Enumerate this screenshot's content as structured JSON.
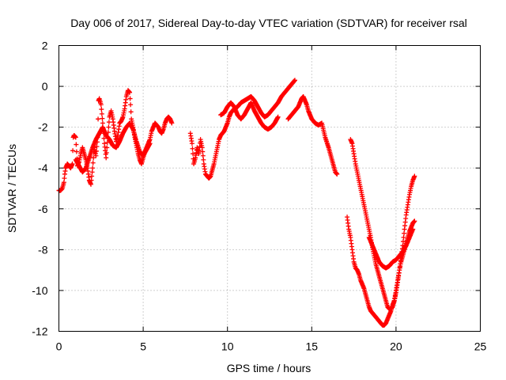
{
  "chart_data": {
    "type": "scatter",
    "title": "Day 006 of 2017, Sidereal Day-to-day VTEC variation (SDTVAR) for receiver rsal",
    "xlabel": "GPS time / hours",
    "ylabel": "SDTVAR / TECUs",
    "xlim": [
      0,
      25
    ],
    "ylim": [
      -12,
      2
    ],
    "xticks": [
      0,
      5,
      10,
      15,
      20,
      25
    ],
    "yticks": [
      -12,
      -10,
      -8,
      -6,
      -4,
      -2,
      0,
      2
    ],
    "xtick_labels": [
      "0",
      "5",
      "10",
      "15",
      "20",
      "25"
    ],
    "ytick_labels": [
      "-12",
      "-10",
      "-8",
      "-6",
      "-4",
      "-2",
      "0",
      "2"
    ],
    "grid": true,
    "legend": "none",
    "marker": "plus",
    "color": "#ff0000",
    "series": [
      {
        "x": [
          0.0,
          0.1,
          0.2,
          0.3,
          0.35,
          0.4,
          0.5,
          0.6,
          0.7,
          0.8,
          0.85,
          0.9,
          1.0,
          1.05,
          1.1,
          1.2,
          1.3,
          1.4,
          1.5,
          1.6,
          1.7,
          1.8,
          1.9,
          2.0,
          2.1,
          2.2,
          2.3,
          2.35,
          2.4,
          2.5,
          2.6,
          2.7,
          2.8,
          2.9,
          3.0,
          3.1,
          3.2,
          3.3,
          3.4,
          3.5,
          3.6,
          3.7,
          3.8,
          3.9,
          4.0,
          4.1,
          4.2,
          4.25,
          4.3,
          4.4,
          4.5,
          4.6,
          4.7,
          4.8,
          4.9,
          5.0,
          5.1,
          5.2,
          5.3,
          5.4,
          5.5,
          5.6,
          5.7,
          5.8,
          5.9,
          6.0,
          6.1,
          6.2,
          6.3,
          6.4,
          6.5,
          6.6,
          6.7
        ],
        "y": [
          -5.1,
          -5.1,
          -5.0,
          -4.7,
          -4.3,
          -4.0,
          -3.8,
          -3.9,
          -4.0,
          -3.8,
          -2.5,
          -2.4,
          -2.5,
          -3.2,
          -3.9,
          -3.7,
          -3.3,
          -3.0,
          -3.3,
          -3.6,
          -4.0,
          -4.6,
          -4.8,
          -4.0,
          -3.0,
          -3.4,
          -2.5,
          -0.7,
          -0.6,
          -0.9,
          -1.8,
          -2.8,
          -3.5,
          -2.5,
          -1.5,
          -1.2,
          -1.6,
          -2.2,
          -2.7,
          -2.4,
          -1.8,
          -1.7,
          -1.5,
          -1.1,
          -0.5,
          -0.2,
          -0.3,
          -0.9,
          -1.6,
          -2.0,
          -2.5,
          -2.9,
          -3.3,
          -3.6,
          -3.8,
          -3.5,
          -3.2,
          -3.0,
          -2.8,
          -2.6,
          -2.2,
          -2.0,
          -1.8,
          -1.9,
          -2.0,
          -2.2,
          -2.3,
          -2.1,
          -1.8,
          -1.6,
          -1.5,
          -1.6,
          -1.8
        ]
      },
      {
        "x": [
          1.0,
          1.2,
          1.4,
          1.6,
          1.8,
          2.0,
          2.2,
          2.4,
          2.6,
          2.8,
          3.0,
          3.2,
          3.4,
          3.6,
          3.8,
          4.0,
          4.2,
          4.4,
          4.6,
          4.8,
          5.0,
          5.2,
          5.4
        ],
        "y": [
          -3.6,
          -3.9,
          -4.2,
          -4.0,
          -3.5,
          -3.0,
          -2.6,
          -2.3,
          -2.0,
          -2.4,
          -2.6,
          -2.9,
          -3.0,
          -2.7,
          -2.3,
          -2.0,
          -1.8,
          -2.1,
          -2.7,
          -3.2,
          -3.4,
          -3.1,
          -2.8
        ]
      },
      {
        "x": [
          7.8,
          7.9,
          8.0,
          8.1,
          8.2,
          8.3,
          8.4,
          8.5,
          8.6,
          8.7,
          8.8,
          8.9,
          9.0,
          9.1,
          9.2,
          9.3,
          9.4,
          9.5,
          9.6,
          9.7,
          9.8,
          9.9,
          10.0,
          10.1,
          10.2,
          10.4,
          10.6,
          10.8,
          11.0,
          11.2,
          11.4,
          11.6,
          11.8,
          12.0,
          12.2,
          12.4,
          12.6,
          12.8,
          13.0,
          13.2,
          13.4,
          13.6,
          13.8,
          14.0
        ],
        "y": [
          -2.3,
          -2.8,
          -3.8,
          -3.5,
          -3.0,
          -3.3,
          -2.6,
          -3.0,
          -3.8,
          -4.3,
          -4.4,
          -4.5,
          -4.4,
          -4.1,
          -3.8,
          -3.4,
          -3.0,
          -2.6,
          -2.4,
          -2.3,
          -2.2,
          -2.0,
          -1.8,
          -1.5,
          -1.3,
          -1.1,
          -1.0,
          -0.8,
          -0.7,
          -0.6,
          -0.5,
          -0.7,
          -1.0,
          -1.3,
          -1.5,
          -1.4,
          -1.2,
          -1.0,
          -0.8,
          -0.5,
          -0.3,
          -0.1,
          0.1,
          0.3
        ]
      },
      {
        "x": [
          9.6,
          9.8,
          10.0,
          10.2,
          10.4,
          10.6,
          10.8,
          11.0,
          11.2,
          11.4,
          11.6,
          11.8,
          12.0,
          12.2,
          12.4,
          12.6,
          12.8,
          13.0
        ],
        "y": [
          -1.4,
          -1.3,
          -1.0,
          -0.8,
          -1.0,
          -1.4,
          -1.6,
          -1.4,
          -1.1,
          -0.8,
          -1.2,
          -1.5,
          -1.8,
          -2.0,
          -2.1,
          -2.0,
          -1.8,
          -1.5
        ]
      },
      {
        "x": [
          13.6,
          13.8,
          14.0,
          14.2,
          14.4,
          14.5,
          14.6,
          14.7,
          14.8,
          14.9,
          15.0,
          15.2,
          15.4,
          15.6,
          15.8,
          16.0,
          16.2,
          16.4,
          16.5
        ],
        "y": [
          -1.6,
          -1.4,
          -1.2,
          -1.0,
          -0.6,
          -0.5,
          -0.7,
          -0.9,
          -1.2,
          -1.4,
          -1.6,
          -1.8,
          -1.9,
          -1.8,
          -2.5,
          -3.0,
          -3.6,
          -4.2,
          -4.3
        ]
      },
      {
        "x": [
          17.3,
          17.4,
          17.5,
          17.6,
          17.7,
          17.8,
          17.9,
          18.0,
          18.1,
          18.2,
          18.3,
          18.4,
          18.5,
          18.6,
          18.7,
          18.8,
          18.9,
          19.0,
          19.1,
          19.2,
          19.3,
          19.4,
          19.5,
          19.6,
          19.7,
          19.8,
          19.9,
          20.0,
          20.1,
          20.2,
          20.3,
          20.4,
          20.5,
          20.6,
          20.7,
          20.8,
          20.9,
          21.0,
          21.1
        ],
        "y": [
          -2.6,
          -2.8,
          -3.3,
          -3.8,
          -4.2,
          -4.6,
          -5.0,
          -5.4,
          -5.8,
          -6.2,
          -6.6,
          -7.0,
          -7.4,
          -7.9,
          -8.3,
          -8.7,
          -9.0,
          -9.3,
          -9.6,
          -9.9,
          -10.2,
          -10.5,
          -10.8,
          -10.9,
          -10.9,
          -10.8,
          -10.5,
          -10.0,
          -9.5,
          -9.0,
          -8.6,
          -8.3,
          -8.0,
          -7.7,
          -7.4,
          -7.1,
          -6.9,
          -6.7,
          -6.6
        ]
      },
      {
        "x": [
          17.1,
          17.2,
          17.3,
          17.4,
          17.5,
          17.6,
          17.7,
          17.8,
          17.9,
          18.0,
          18.1,
          18.2,
          18.3,
          18.4,
          18.5,
          18.6,
          18.7,
          18.8,
          18.9,
          19.0,
          19.1,
          19.2,
          19.3,
          19.4,
          19.5,
          19.6,
          19.7,
          19.8,
          19.9,
          20.0,
          20.1,
          20.2,
          20.3,
          20.4,
          20.5,
          20.6,
          20.7,
          20.8,
          20.9,
          21.0,
          21.1
        ],
        "y": [
          -6.4,
          -7.0,
          -7.4,
          -8.0,
          -8.6,
          -8.9,
          -9.0,
          -9.2,
          -9.5,
          -9.7,
          -9.9,
          -10.2,
          -10.5,
          -10.8,
          -11.0,
          -11.1,
          -11.2,
          -11.3,
          -11.4,
          -11.5,
          -11.6,
          -11.7,
          -11.7,
          -11.6,
          -11.4,
          -11.2,
          -11.0,
          -10.7,
          -10.5,
          -10.1,
          -9.6,
          -9.0,
          -8.4,
          -7.8,
          -7.0,
          -6.3,
          -5.8,
          -5.3,
          -4.9,
          -4.6,
          -4.4
        ]
      },
      {
        "x": [
          18.4,
          18.6,
          18.8,
          19.0,
          19.2,
          19.4,
          19.6,
          19.8,
          20.0,
          20.2,
          20.4,
          20.6,
          20.8,
          21.0
        ],
        "y": [
          -7.4,
          -7.8,
          -8.2,
          -8.6,
          -8.8,
          -8.9,
          -8.8,
          -8.6,
          -8.5,
          -8.3,
          -8.1,
          -7.8,
          -7.4,
          -7.0
        ]
      }
    ]
  }
}
